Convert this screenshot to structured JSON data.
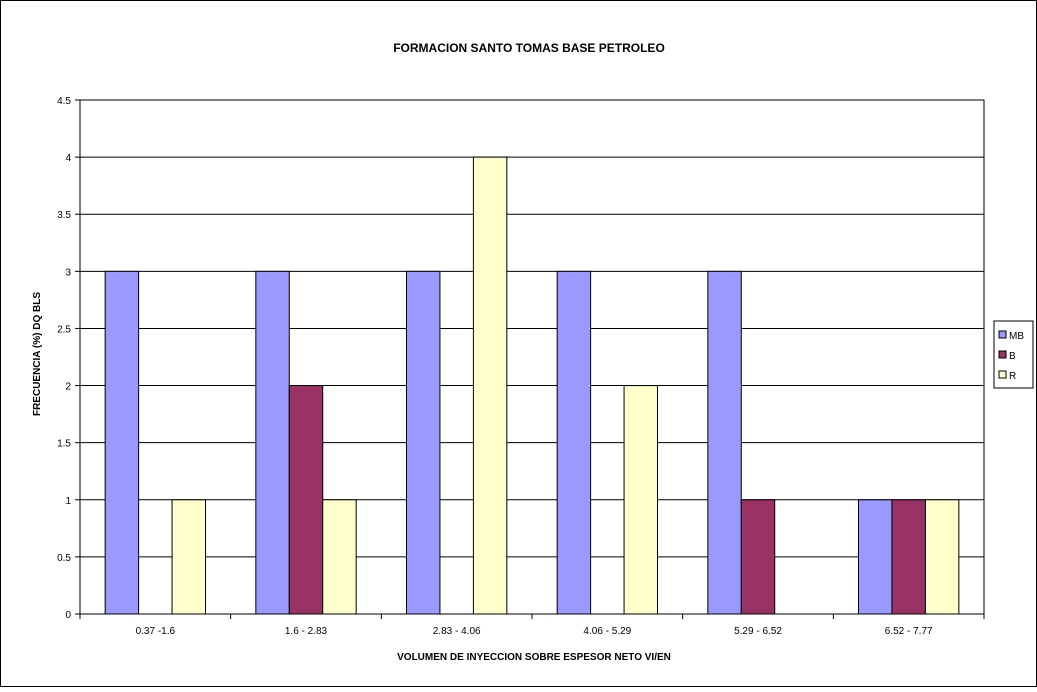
{
  "chart_data": {
    "type": "bar",
    "title": "FORMACION SANTO TOMAS BASE PETROLEO",
    "xlabel": "VOLUMEN DE INYECCION SOBRE ESPESOR NETO VI/EN",
    "ylabel": "FRECUENCIA (%) DQ BLS",
    "ylim": [
      0,
      4.5
    ],
    "yticks": [
      "0",
      "0.5",
      "1",
      "1.5",
      "2",
      "2.5",
      "3",
      "3.5",
      "4",
      "4.5"
    ],
    "categories": [
      "0.37 -1.6",
      "1.6 - 2.83",
      "2.83 - 4.06",
      "4.06 - 5.29",
      "5.29 - 6.52",
      "6.52 - 7.77"
    ],
    "series": [
      {
        "name": "MB",
        "color": "#9999ff",
        "values": [
          3,
          3,
          3,
          3,
          3,
          1
        ]
      },
      {
        "name": "B",
        "color": "#993366",
        "values": [
          0,
          2,
          0,
          0,
          1,
          1
        ]
      },
      {
        "name": "R",
        "color": "#ffffcc",
        "values": [
          1,
          1,
          4,
          2,
          0,
          1
        ]
      }
    ],
    "grid": true,
    "legend_position": "right"
  }
}
